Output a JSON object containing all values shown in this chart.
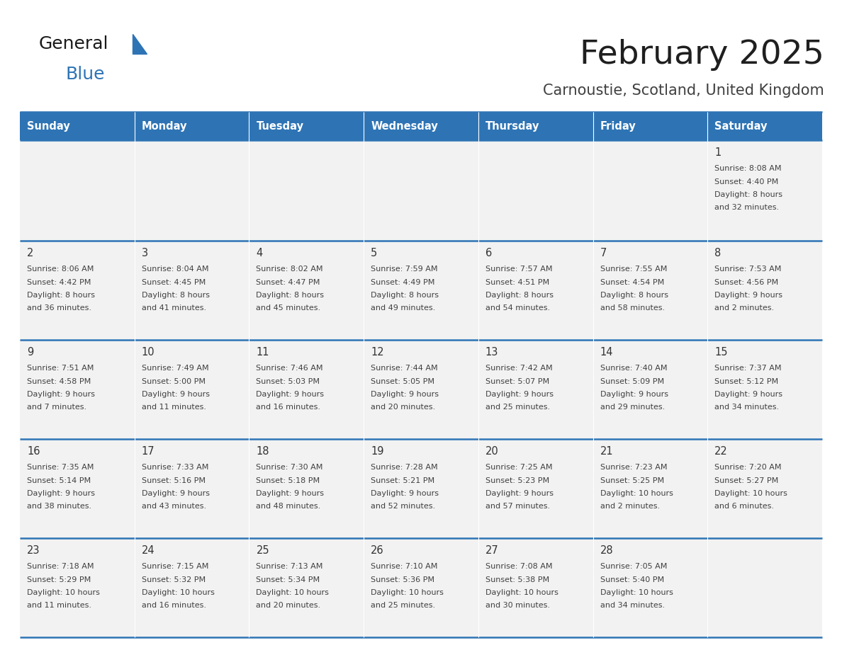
{
  "title": "February 2025",
  "subtitle": "Carnoustie, Scotland, United Kingdom",
  "days_of_week": [
    "Sunday",
    "Monday",
    "Tuesday",
    "Wednesday",
    "Thursday",
    "Friday",
    "Saturday"
  ],
  "header_bg": "#2E74B5",
  "header_text": "#FFFFFF",
  "cell_bg": "#F2F2F2",
  "line_color": "#2E74B5",
  "title_color": "#1F1F1F",
  "subtitle_color": "#404040",
  "cell_text_color": "#404040",
  "day_num_color": "#333333",
  "calendar_data": {
    "1": {
      "sunrise": "8:08 AM",
      "sunset": "4:40 PM",
      "daylight": "8 hours and 32 minutes"
    },
    "2": {
      "sunrise": "8:06 AM",
      "sunset": "4:42 PM",
      "daylight": "8 hours and 36 minutes"
    },
    "3": {
      "sunrise": "8:04 AM",
      "sunset": "4:45 PM",
      "daylight": "8 hours and 41 minutes"
    },
    "4": {
      "sunrise": "8:02 AM",
      "sunset": "4:47 PM",
      "daylight": "8 hours and 45 minutes"
    },
    "5": {
      "sunrise": "7:59 AM",
      "sunset": "4:49 PM",
      "daylight": "8 hours and 49 minutes"
    },
    "6": {
      "sunrise": "7:57 AM",
      "sunset": "4:51 PM",
      "daylight": "8 hours and 54 minutes"
    },
    "7": {
      "sunrise": "7:55 AM",
      "sunset": "4:54 PM",
      "daylight": "8 hours and 58 minutes"
    },
    "8": {
      "sunrise": "7:53 AM",
      "sunset": "4:56 PM",
      "daylight": "9 hours and 2 minutes"
    },
    "9": {
      "sunrise": "7:51 AM",
      "sunset": "4:58 PM",
      "daylight": "9 hours and 7 minutes"
    },
    "10": {
      "sunrise": "7:49 AM",
      "sunset": "5:00 PM",
      "daylight": "9 hours and 11 minutes"
    },
    "11": {
      "sunrise": "7:46 AM",
      "sunset": "5:03 PM",
      "daylight": "9 hours and 16 minutes"
    },
    "12": {
      "sunrise": "7:44 AM",
      "sunset": "5:05 PM",
      "daylight": "9 hours and 20 minutes"
    },
    "13": {
      "sunrise": "7:42 AM",
      "sunset": "5:07 PM",
      "daylight": "9 hours and 25 minutes"
    },
    "14": {
      "sunrise": "7:40 AM",
      "sunset": "5:09 PM",
      "daylight": "9 hours and 29 minutes"
    },
    "15": {
      "sunrise": "7:37 AM",
      "sunset": "5:12 PM",
      "daylight": "9 hours and 34 minutes"
    },
    "16": {
      "sunrise": "7:35 AM",
      "sunset": "5:14 PM",
      "daylight": "9 hours and 38 minutes"
    },
    "17": {
      "sunrise": "7:33 AM",
      "sunset": "5:16 PM",
      "daylight": "9 hours and 43 minutes"
    },
    "18": {
      "sunrise": "7:30 AM",
      "sunset": "5:18 PM",
      "daylight": "9 hours and 48 minutes"
    },
    "19": {
      "sunrise": "7:28 AM",
      "sunset": "5:21 PM",
      "daylight": "9 hours and 52 minutes"
    },
    "20": {
      "sunrise": "7:25 AM",
      "sunset": "5:23 PM",
      "daylight": "9 hours and 57 minutes"
    },
    "21": {
      "sunrise": "7:23 AM",
      "sunset": "5:25 PM",
      "daylight": "10 hours and 2 minutes"
    },
    "22": {
      "sunrise": "7:20 AM",
      "sunset": "5:27 PM",
      "daylight": "10 hours and 6 minutes"
    },
    "23": {
      "sunrise": "7:18 AM",
      "sunset": "5:29 PM",
      "daylight": "10 hours and 11 minutes"
    },
    "24": {
      "sunrise": "7:15 AM",
      "sunset": "5:32 PM",
      "daylight": "10 hours and 16 minutes"
    },
    "25": {
      "sunrise": "7:13 AM",
      "sunset": "5:34 PM",
      "daylight": "10 hours and 20 minutes"
    },
    "26": {
      "sunrise": "7:10 AM",
      "sunset": "5:36 PM",
      "daylight": "10 hours and 25 minutes"
    },
    "27": {
      "sunrise": "7:08 AM",
      "sunset": "5:38 PM",
      "daylight": "10 hours and 30 minutes"
    },
    "28": {
      "sunrise": "7:05 AM",
      "sunset": "5:40 PM",
      "daylight": "10 hours and 34 minutes"
    }
  }
}
